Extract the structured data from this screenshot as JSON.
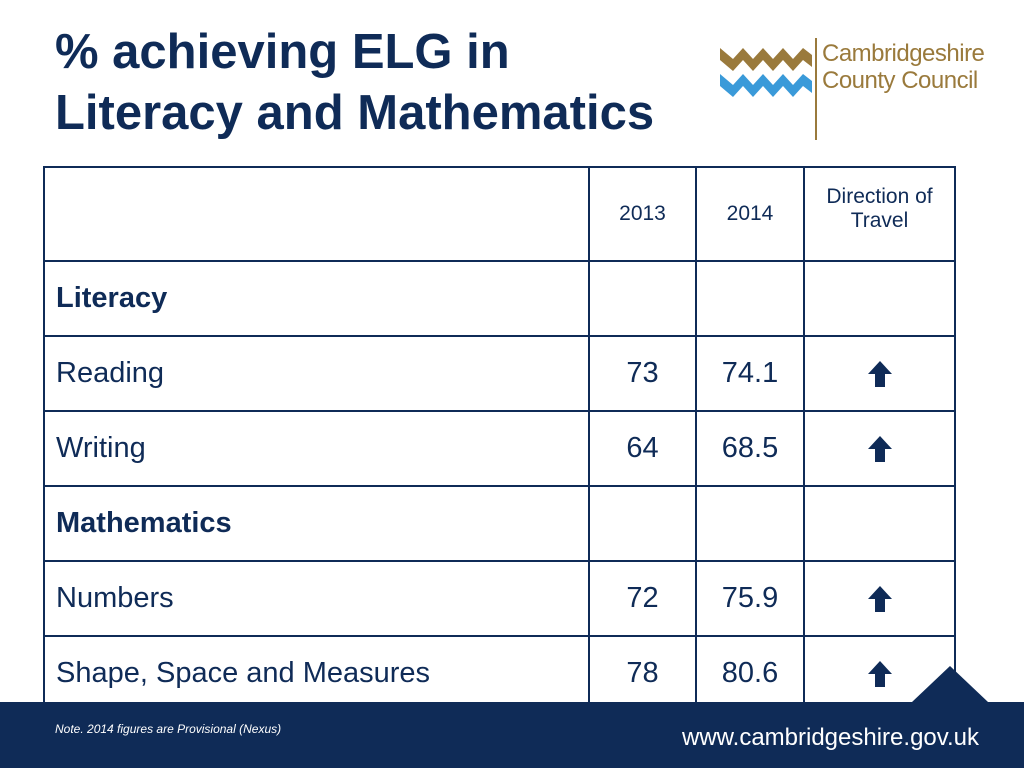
{
  "title": {
    "line1": "% achieving ELG in",
    "line2": "Literacy and Mathematics"
  },
  "logo": {
    "line1": "Cambridgeshire",
    "line2": "County Council",
    "colors": {
      "brown": "#9a7a3c",
      "blue": "#3a9ad9"
    }
  },
  "table": {
    "headers": {
      "label": "",
      "year1": "2013",
      "year2": "2014",
      "direction_line1": "Direction of",
      "direction_line2": "Travel"
    },
    "rows": [
      {
        "label": "Literacy",
        "section": true
      },
      {
        "label": "Reading",
        "v2013": "73",
        "v2014": "74.1",
        "direction": "up-arrow-icon"
      },
      {
        "label": "Writing",
        "v2013": "64",
        "v2014": "68.5",
        "direction": "up-arrow-icon"
      },
      {
        "label": "Mathematics",
        "section": true
      },
      {
        "label": "Numbers",
        "v2013": "72",
        "v2014": "75.9",
        "direction": "up-arrow-icon"
      },
      {
        "label": "Shape, Space and Measures",
        "v2013": "78",
        "v2014": "80.6",
        "direction": "up-arrow-icon"
      }
    ]
  },
  "footer": {
    "note": "Note. 2014 figures are Provisional (Nexus)",
    "website": "www.cambridgeshire.gov.uk",
    "background": "#0f2b57"
  }
}
